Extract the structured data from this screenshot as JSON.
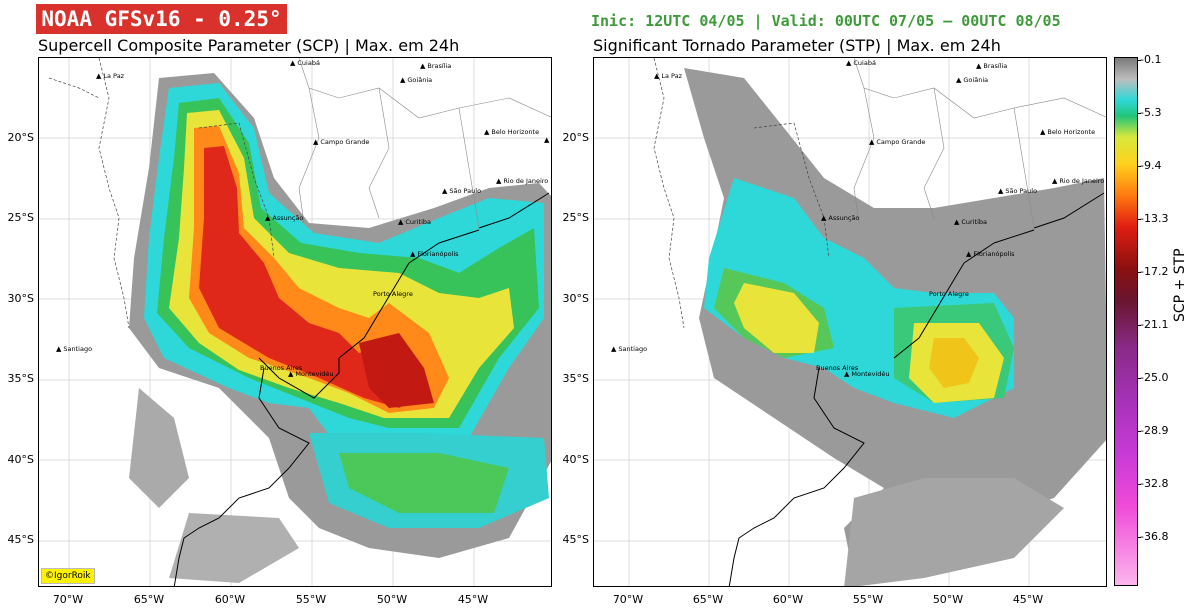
{
  "header": {
    "model_badge": "NOAA GFSv16 - 0.25°",
    "run_info": "Inic: 12UTC 04/05 | Valid: 00UTC 07/05 – 00UTC 08/05"
  },
  "panels": [
    {
      "title": "Supercell Composite Parameter (SCP) | Max. em 24h"
    },
    {
      "title": "Significant Tornado Parameter (STP) | Max. em 24h"
    }
  ],
  "lat_labels": [
    "20°S",
    "25°S",
    "30°S",
    "35°S",
    "40°S",
    "45°S"
  ],
  "lon_labels": [
    "70°W",
    "65°W",
    "60°W",
    "55°W",
    "50°W",
    "45°W"
  ],
  "cities": [
    "La Paz",
    "Cuiabá",
    "Brasília",
    "Goiânia",
    "Belo Horizonte",
    "Vitória",
    "Campo Grande",
    "São Paulo",
    "Rio de Janeiro",
    "Assunção",
    "Curitiba",
    "Florianópolis",
    "Porto Alegre",
    "Santiago",
    "Buenos Aires",
    "Montevidéu"
  ],
  "colorbar": {
    "label": "SCP + STP",
    "ticks": [
      "-0.1",
      "-5.3",
      "-9.4",
      "-13.3",
      "-17.2",
      "-21.1",
      "-25.0",
      "-28.9",
      "-32.8",
      "-36.8"
    ]
  },
  "credit": "©IgorRoik",
  "colors": {
    "badge": "#d9312b",
    "run_info": "#3e9a3a"
  }
}
